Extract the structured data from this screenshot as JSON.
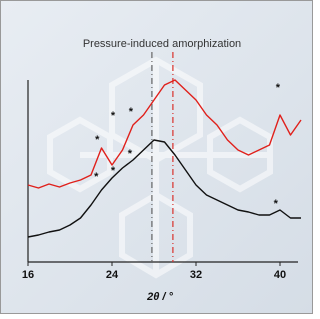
{
  "chart_data": {
    "type": "line",
    "title": "Pressure-induced amorphization",
    "x_label": "2θ / °",
    "x": [
      16,
      17,
      18,
      19,
      20,
      21,
      22,
      23,
      24,
      25,
      26,
      27,
      28,
      29,
      30,
      31,
      32,
      33,
      34,
      35,
      36,
      37,
      38,
      39,
      40,
      41,
      42
    ],
    "series": [
      {
        "color": "#e0201b",
        "values": [
          38.5,
          37,
          39,
          37.5,
          39.5,
          41,
          43.5,
          57,
          48.5,
          56,
          68.5,
          73.5,
          81,
          88.5,
          91,
          86,
          81,
          73.5,
          68.5,
          61,
          56,
          53.5,
          56,
          58.5,
          73.5,
          63.5,
          71
        ]
      },
      {
        "color": "#111111",
        "values": [
          12.5,
          13.5,
          15,
          16,
          18.5,
          22,
          28.5,
          36,
          42,
          47,
          51,
          56,
          61,
          60,
          53.5,
          46,
          38.5,
          33.5,
          31,
          28.5,
          26,
          25,
          23.5,
          23.5,
          26,
          22,
          22
        ]
      }
    ],
    "xlim": [
      16,
      42
    ],
    "ylim": [
      0,
      100
    ],
    "xticks": [
      16,
      24,
      32,
      40
    ],
    "reference_lines": [
      {
        "x": 27.8,
        "color": "#666666"
      },
      {
        "x": 29.8,
        "color": "#d9302a"
      }
    ],
    "annotations": [
      {
        "text": "*",
        "x": 22.5,
        "y": 39.5
      },
      {
        "text": "*",
        "x": 24.1,
        "y": 42.5
      },
      {
        "text": "*",
        "x": 25.7,
        "y": 51
      },
      {
        "text": "*",
        "x": 39.6,
        "y": 26
      },
      {
        "text": "*",
        "x": 22.6,
        "y": 58
      },
      {
        "text": "*",
        "x": 24.1,
        "y": 70
      },
      {
        "text": "*",
        "x": 25.8,
        "y": 72
      },
      {
        "text": "*",
        "x": 39.8,
        "y": 84
      }
    ]
  }
}
